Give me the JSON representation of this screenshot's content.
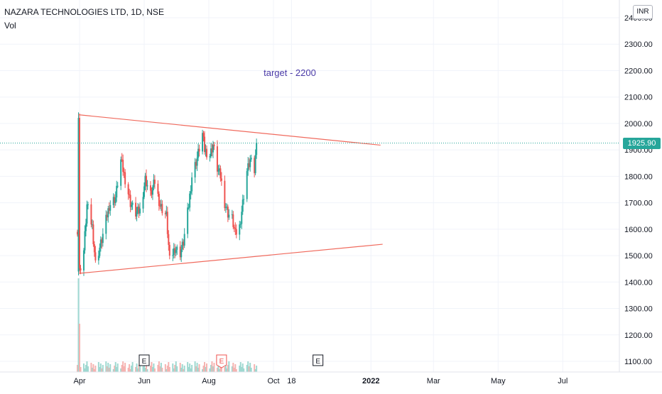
{
  "header": {
    "title": "NAZARA TECHNOLOGIES LTD, 1D, NSE",
    "indicator": "Vol",
    "currency": "INR"
  },
  "last_price": "1925.90",
  "colors": {
    "up": "#26a69a",
    "down": "#ef5350",
    "trendline": "#f06a5d",
    "annotation": "#4a3aa7",
    "grid": "#f0f3fa",
    "axis_text": "#131722"
  },
  "annotation": {
    "text": "target - 2200"
  },
  "earnings_markers": [
    {
      "label": "E",
      "date": "2021-06-01",
      "style": "reported"
    },
    {
      "label": "E",
      "date": "2021-08-13",
      "style": "highlighted"
    },
    {
      "label": "E",
      "date": "2021-11-12",
      "style": "upcoming"
    }
  ],
  "chart_data": {
    "type": "candlestick",
    "title": "NAZARA TECHNOLOGIES LTD, 1D, NSE",
    "ylabel": "INR",
    "ylim": [
      1070,
      2440
    ],
    "y_ticks": [
      "1100.00",
      "1200.00",
      "1300.00",
      "1400.00",
      "1500.00",
      "1600.00",
      "1700.00",
      "1800.00",
      "1900.00",
      "2000.00",
      "2100.00",
      "2200.00",
      "2300.00",
      "2400.00"
    ],
    "x_ticks": [
      {
        "label": "Apr",
        "date": "2021-04-01"
      },
      {
        "label": "Jun",
        "date": "2021-06-01"
      },
      {
        "label": "Aug",
        "date": "2021-08-01"
      },
      {
        "label": "Oct",
        "date": "2021-10-01"
      },
      {
        "label": "18",
        "date": "2021-10-18"
      },
      {
        "label": "2022",
        "date": "2022-01-01"
      },
      {
        "label": "Mar",
        "date": "2022-03-01"
      },
      {
        "label": "May",
        "date": "2022-05-01"
      },
      {
        "label": "Jul",
        "date": "2022-07-01"
      }
    ],
    "price_path": [
      [
        "2021-03-30",
        1600
      ],
      [
        "2021-03-31",
        2025
      ],
      [
        "2021-04-01",
        1440
      ],
      [
        "2021-04-05",
        1520
      ],
      [
        "2021-04-08",
        1690
      ],
      [
        "2021-04-13",
        1610
      ],
      [
        "2021-04-16",
        1470
      ],
      [
        "2021-04-22",
        1560
      ],
      [
        "2021-04-29",
        1690
      ],
      [
        "2021-05-05",
        1720
      ],
      [
        "2021-05-10",
        1860
      ],
      [
        "2021-05-14",
        1790
      ],
      [
        "2021-05-19",
        1700
      ],
      [
        "2021-05-24",
        1660
      ],
      [
        "2021-05-28",
        1670
      ],
      [
        "2021-06-02",
        1790
      ],
      [
        "2021-06-07",
        1730
      ],
      [
        "2021-06-11",
        1780
      ],
      [
        "2021-06-16",
        1690
      ],
      [
        "2021-06-22",
        1650
      ],
      [
        "2021-06-25",
        1480
      ],
      [
        "2021-06-30",
        1530
      ],
      [
        "2021-07-05",
        1510
      ],
      [
        "2021-07-08",
        1550
      ],
      [
        "2021-07-13",
        1690
      ],
      [
        "2021-07-16",
        1800
      ],
      [
        "2021-07-21",
        1870
      ],
      [
        "2021-07-26",
        1960
      ],
      [
        "2021-07-28",
        1900
      ],
      [
        "2021-08-02",
        1880
      ],
      [
        "2021-08-05",
        1920
      ],
      [
        "2021-08-09",
        1830
      ],
      [
        "2021-08-12",
        1800
      ],
      [
        "2021-08-16",
        1700
      ],
      [
        "2021-08-19",
        1660
      ],
      [
        "2021-08-23",
        1640
      ],
      [
        "2021-08-26",
        1580
      ],
      [
        "2021-08-30",
        1610
      ],
      [
        "2021-09-02",
        1700
      ],
      [
        "2021-09-06",
        1820
      ],
      [
        "2021-09-09",
        1860
      ],
      [
        "2021-09-13",
        1820
      ],
      [
        "2021-09-15",
        1926
      ]
    ],
    "last_price": 1925.9,
    "trendlines": [
      {
        "name": "upper",
        "start": [
          "2021-03-31",
          2033
        ],
        "end": [
          "2022-01-10",
          1918
        ]
      },
      {
        "name": "lower",
        "start": [
          "2021-04-01",
          1433
        ],
        "end": [
          "2022-01-12",
          1543
        ]
      }
    ],
    "volume_spike_date": "2021-03-31",
    "grid": true
  }
}
